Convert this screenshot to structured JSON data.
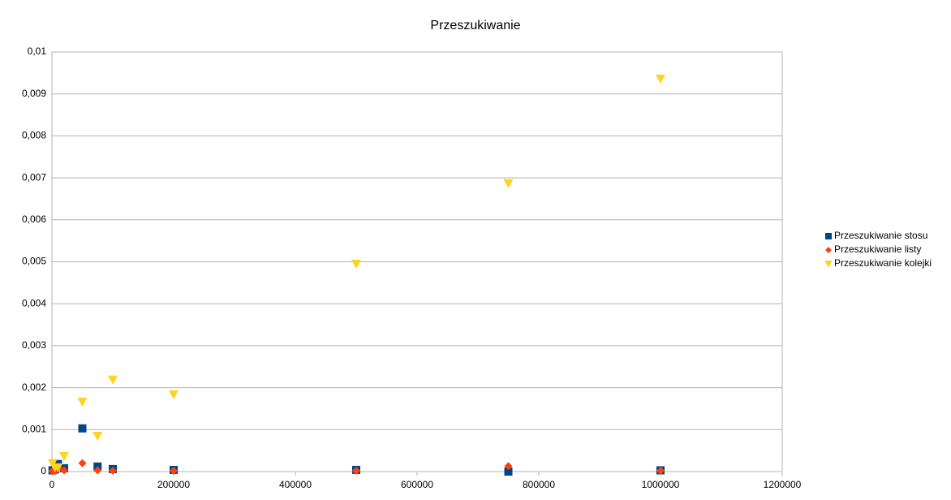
{
  "chart_data": {
    "type": "scatter",
    "title": "Przeszukiwanie",
    "x": [
      1000,
      5000,
      10000,
      20000,
      50000,
      75000,
      100000,
      200000,
      500000,
      750000,
      1000000
    ],
    "series": [
      {
        "name": "Przeszukiwanie stosu",
        "color": "#004586",
        "marker": "square",
        "values": [
          3e-05,
          5e-05,
          0.00018,
          8e-05,
          0.00103,
          0.00012,
          6e-05,
          4e-05,
          4e-05,
          0.0,
          3e-05
        ]
      },
      {
        "name": "Przeszukiwanie listy",
        "color": "#ff420e",
        "marker": "diamond",
        "values": [
          1e-05,
          2e-05,
          8e-05,
          3e-05,
          0.0002,
          3e-05,
          2e-05,
          2e-05,
          2e-05,
          0.00013,
          2e-05
        ]
      },
      {
        "name": "Przeszukiwanie kolejki",
        "color": "#ffd320",
        "marker": "triangle-down",
        "values": [
          0.0002,
          0.0001,
          0.0001,
          0.00037,
          0.00166,
          0.00085,
          0.00219,
          0.00184,
          0.00495,
          0.00687,
          0.00936
        ]
      }
    ],
    "xlim": [
      0,
      1200000
    ],
    "xticks": [
      0,
      200000,
      400000,
      600000,
      800000,
      1000000,
      1200000
    ],
    "ylim": [
      0,
      0.01
    ],
    "yticks": [
      0,
      {
        "value": 0.001,
        "label": "0,001"
      },
      {
        "value": 0.002,
        "label": "0,002"
      },
      {
        "value": 0.003,
        "label": "0,003"
      },
      {
        "value": 0.004,
        "label": "0,004"
      },
      {
        "value": 0.005,
        "label": "0,005"
      },
      {
        "value": 0.006,
        "label": "0,006"
      },
      {
        "value": 0.007,
        "label": "0,007"
      },
      {
        "value": 0.008,
        "label": "0,008"
      },
      {
        "value": 0.009,
        "label": "0,009"
      },
      {
        "value": 0.01,
        "label": "0,01"
      }
    ],
    "grid": true,
    "legend": "right"
  }
}
